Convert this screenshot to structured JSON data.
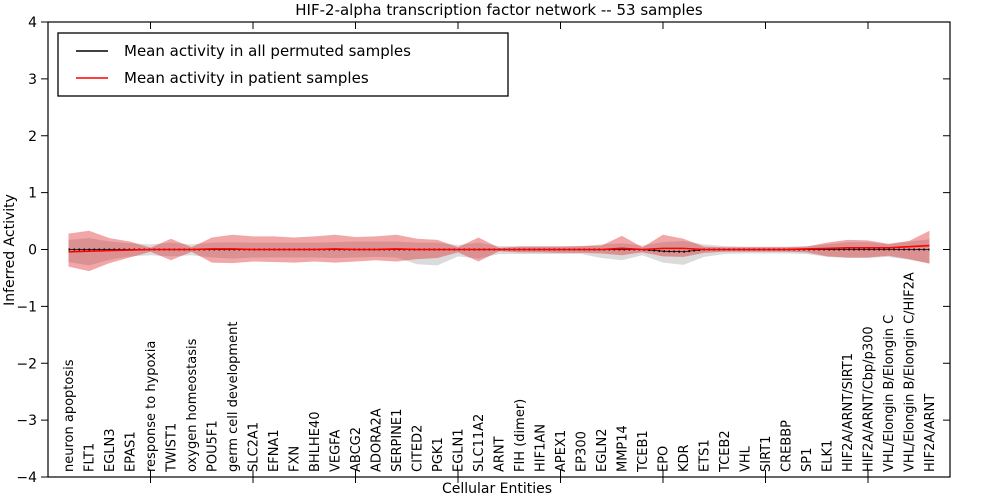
{
  "figure": {
    "title": "HIF-2-alpha transcription factor network -- 53 samples",
    "xlabel": "Cellular Entities",
    "ylabel": "Inferred Activity"
  },
  "legend": {
    "items": [
      {
        "label": "Mean activity in all permuted samples",
        "color": "#000000"
      },
      {
        "label": "Mean activity in patient samples",
        "color": "#ff0000"
      }
    ]
  },
  "chart_data": {
    "type": "line",
    "title": "HIF-2-alpha transcription factor network -- 53 samples",
    "xlabel": "Cellular Entities",
    "ylabel": "Inferred Activity",
    "ylim": [
      -4,
      4
    ],
    "yticks": [
      -4,
      -3,
      -2,
      -1,
      0,
      1,
      2,
      3,
      4
    ],
    "ytick_labels": [
      "−4",
      "−3",
      "−2",
      "−1",
      "0",
      "1",
      "2",
      "3",
      "4"
    ],
    "xlim": [
      0,
      44
    ],
    "x_major_ticks": [
      5,
      10,
      15,
      20,
      25,
      30,
      35,
      40
    ],
    "grid": false,
    "legend_position": "upper left",
    "colors": {
      "patient": "#ff0000",
      "permuted": "#000000",
      "patient_band": "#dd2222",
      "permuted_band": "#888888"
    },
    "categories": [
      "neuron apoptosis",
      "FLT1",
      "EGLN3",
      "EPAS1",
      "response to hypoxia",
      "TWIST1",
      "oxygen homeostasis",
      "POU5F1",
      "germ cell development",
      "SLC2A1",
      "EFNA1",
      "FXN",
      "BHLHE40",
      "VEGFA",
      "ABCG2",
      "ADORA2A",
      "SERPINE1",
      "CITED2",
      "PGK1",
      "EGLN1",
      "SLC11A2",
      "ARNT",
      "FIH (dimer)",
      "HIF1AN",
      "APEX1",
      "EP300",
      "EGLN2",
      "MMP14",
      "TCEB1",
      "EPO",
      "KDR",
      "ETS1",
      "TCEB2",
      "VHL",
      "SIRT1",
      "CREBBP",
      "SP1",
      "ELK1",
      "HIF2A/ARNT/SIRT1",
      "HIF2A/ARNT/Cbp/p300",
      "VHL/Elongin B/Elongin C",
      "VHL/Elongin B/Elongin C/HIF2A",
      "HIF2A/ARNT"
    ],
    "series": [
      {
        "name": "Permuted samples std band",
        "type": "band",
        "color": "#888888",
        "opacity": 0.3,
        "upper": [
          0.17,
          0.2,
          0.14,
          0.11,
          0.09,
          0.12,
          0.09,
          0.12,
          0.13,
          0.12,
          0.12,
          0.12,
          0.12,
          0.13,
          0.14,
          0.14,
          0.14,
          0.12,
          0.12,
          0.08,
          0.12,
          0.06,
          0.06,
          0.06,
          0.06,
          0.06,
          0.09,
          0.11,
          0.07,
          0.13,
          0.15,
          0.09,
          0.06,
          0.05,
          0.05,
          0.05,
          0.06,
          0.09,
          0.13,
          0.13,
          0.09,
          0.14,
          0.18
        ],
        "lower": [
          -0.22,
          -0.28,
          -0.18,
          -0.12,
          -0.1,
          -0.12,
          -0.1,
          -0.14,
          -0.16,
          -0.14,
          -0.14,
          -0.14,
          -0.14,
          -0.15,
          -0.14,
          -0.13,
          -0.14,
          -0.26,
          -0.28,
          -0.12,
          -0.16,
          -0.08,
          -0.08,
          -0.08,
          -0.08,
          -0.08,
          -0.15,
          -0.19,
          -0.1,
          -0.23,
          -0.27,
          -0.13,
          -0.08,
          -0.07,
          -0.07,
          -0.07,
          -0.08,
          -0.13,
          -0.15,
          -0.15,
          -0.13,
          -0.18,
          -0.24
        ]
      },
      {
        "name": "Patient samples std band",
        "type": "band",
        "color": "#dd2222",
        "opacity": 0.4,
        "upper": [
          0.28,
          0.33,
          0.2,
          0.14,
          0.03,
          0.19,
          0.04,
          0.21,
          0.26,
          0.23,
          0.23,
          0.21,
          0.23,
          0.26,
          0.22,
          0.23,
          0.26,
          0.19,
          0.17,
          0.04,
          0.21,
          0.03,
          0.05,
          0.05,
          0.05,
          0.06,
          0.07,
          0.24,
          0.04,
          0.26,
          0.19,
          0.05,
          0.04,
          0.04,
          0.04,
          0.04,
          0.05,
          0.12,
          0.17,
          0.16,
          0.1,
          0.15,
          0.33
        ],
        "lower": [
          -0.3,
          -0.38,
          -0.24,
          -0.14,
          -0.04,
          -0.19,
          -0.04,
          -0.23,
          -0.24,
          -0.21,
          -0.22,
          -0.23,
          -0.21,
          -0.23,
          -0.21,
          -0.19,
          -0.21,
          -0.17,
          -0.15,
          -0.05,
          -0.21,
          -0.03,
          -0.05,
          -0.05,
          -0.06,
          -0.06,
          -0.07,
          -0.1,
          -0.05,
          -0.12,
          -0.13,
          -0.06,
          -0.04,
          -0.04,
          -0.04,
          -0.04,
          -0.05,
          -0.12,
          -0.14,
          -0.14,
          -0.11,
          -0.17,
          -0.25
        ]
      },
      {
        "name": "Mean activity in all permuted samples",
        "type": "line",
        "color": "#000000",
        "style": "dotted-marker",
        "values": [
          0,
          0,
          0,
          0,
          0,
          0,
          0,
          0,
          0,
          0,
          0,
          0,
          0,
          0,
          0,
          0,
          0,
          0,
          0,
          0,
          0,
          0,
          0,
          0,
          0,
          0,
          0,
          0,
          0,
          -0.03,
          -0.04,
          0,
          0,
          0,
          0,
          0,
          0,
          0,
          0,
          0,
          0,
          0,
          0
        ]
      },
      {
        "name": "Mean activity in patient samples",
        "type": "line",
        "color": "#ff0000",
        "style": "solid",
        "values": [
          -0.04,
          -0.03,
          -0.02,
          -0.01,
          0,
          0,
          0,
          0.01,
          0.01,
          0,
          0,
          0,
          0,
          0.01,
          0,
          0,
          0.01,
          0,
          0,
          0,
          0,
          0,
          0,
          0,
          0,
          0,
          0,
          0.02,
          0,
          0.02,
          0.02,
          0,
          0,
          0,
          0,
          0,
          0.01,
          0.02,
          0.03,
          0.03,
          0.03,
          0.05,
          0.07
        ]
      }
    ]
  }
}
